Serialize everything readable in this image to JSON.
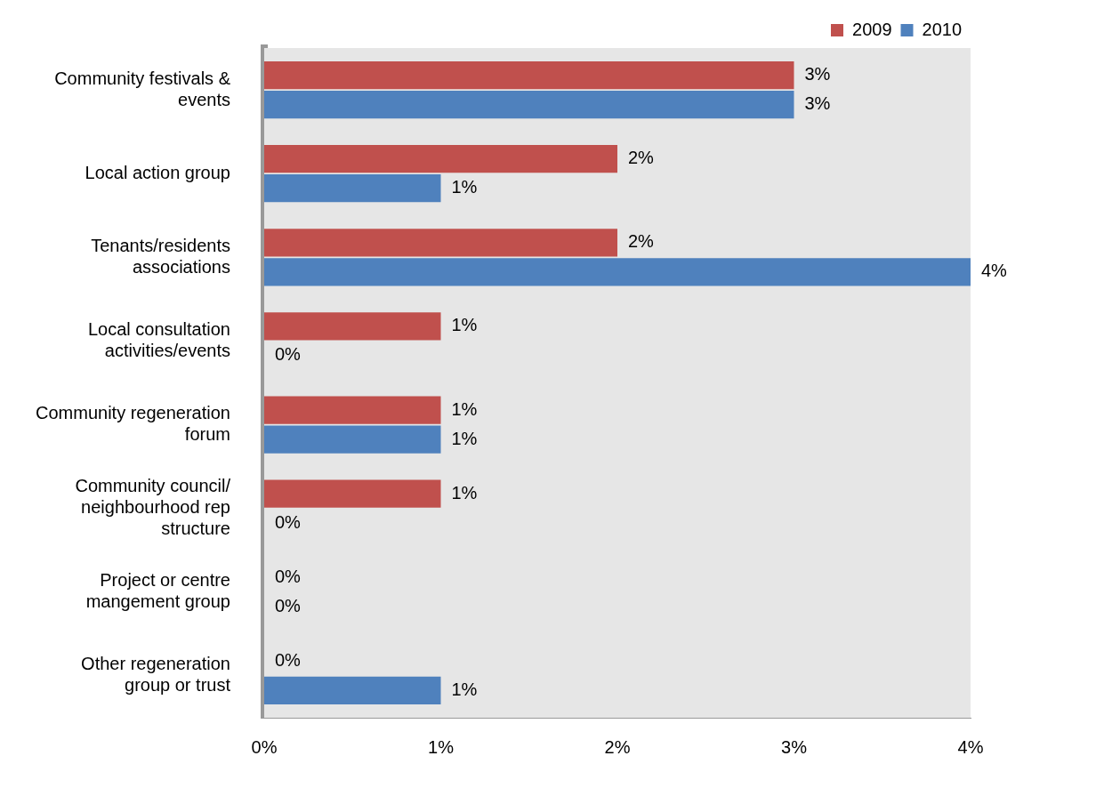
{
  "chart_data": {
    "type": "bar",
    "orientation": "horizontal",
    "categories": [
      "Community festivals & events",
      "Local action group",
      "Tenants/residents associations",
      "Local consultation activities/events",
      "Community regeneration forum",
      "Community council/ neighbourhood rep structure",
      "Project or centre mangement group",
      "Other regeneration group or trust"
    ],
    "series": [
      {
        "name": "2009",
        "color": "#c0504d",
        "values": [
          3,
          2,
          2,
          1,
          1,
          1,
          0,
          0
        ],
        "value_labels": [
          "3%",
          "2%",
          "2%",
          "1%",
          "1%",
          "1%",
          "0%",
          "0%"
        ]
      },
      {
        "name": "2010",
        "color": "#4f81bd",
        "values": [
          3,
          1,
          4,
          0,
          1,
          0,
          0,
          1
        ],
        "value_labels": [
          "3%",
          "1%",
          "4%",
          "0%",
          "1%",
          "0%",
          "0%",
          "1%"
        ]
      }
    ],
    "xlim": [
      0,
      4
    ],
    "xticks": [
      {
        "value": 0,
        "label": "0%"
      },
      {
        "value": 1,
        "label": "1%"
      },
      {
        "value": 2,
        "label": "2%"
      },
      {
        "value": 3,
        "label": "3%"
      },
      {
        "value": 4,
        "label": "4%"
      }
    ],
    "grid": false,
    "legend": "top right"
  }
}
